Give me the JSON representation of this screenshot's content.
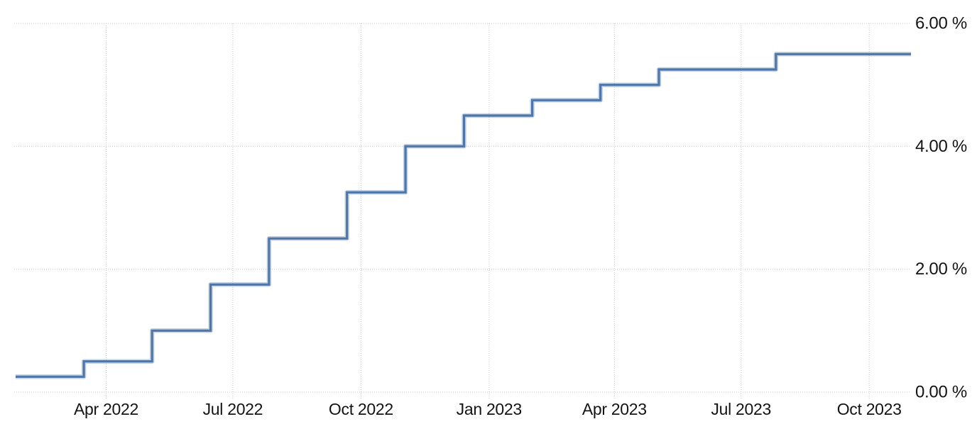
{
  "chart_data": {
    "type": "line",
    "subtype": "step-after",
    "title": "",
    "unit": "%",
    "grid": "dotted",
    "legend": "none",
    "background": "#ffffff",
    "line_color": "#4e76a8",
    "grid_color": "#c9c9c9",
    "label_color": "#141414",
    "x_range": {
      "start": "2022-01-26",
      "end": "2023-10-31"
    },
    "y_range": {
      "min": 0,
      "max": 6
    },
    "y_ticks": [
      {
        "label": "0.00 %",
        "value": 0
      },
      {
        "label": "2.00 %",
        "value": 2
      },
      {
        "label": "4.00 %",
        "value": 4
      },
      {
        "label": "6.00 %",
        "value": 6
      }
    ],
    "x_ticks": [
      {
        "label": "Apr 2022",
        "date": "2022-04-01"
      },
      {
        "label": "Jul 2022",
        "date": "2022-07-01"
      },
      {
        "label": "Oct 2022",
        "date": "2022-10-01"
      },
      {
        "label": "Jan 2023",
        "date": "2023-01-01"
      },
      {
        "label": "Apr 2023",
        "date": "2023-04-01"
      },
      {
        "label": "Jul 2023",
        "date": "2023-07-01"
      },
      {
        "label": "Oct 2023",
        "date": "2023-10-01"
      }
    ],
    "series": [
      {
        "points": [
          {
            "date": "2022-01-26",
            "value": 0.25
          },
          {
            "date": "2022-03-16",
            "value": 0.5
          },
          {
            "date": "2022-05-04",
            "value": 1.0
          },
          {
            "date": "2022-06-15",
            "value": 1.75
          },
          {
            "date": "2022-07-27",
            "value": 2.5
          },
          {
            "date": "2022-09-21",
            "value": 3.25
          },
          {
            "date": "2022-11-02",
            "value": 4.0
          },
          {
            "date": "2022-12-14",
            "value": 4.5
          },
          {
            "date": "2023-02-01",
            "value": 4.75
          },
          {
            "date": "2023-03-22",
            "value": 5.0
          },
          {
            "date": "2023-05-03",
            "value": 5.25
          },
          {
            "date": "2023-07-26",
            "value": 5.5
          },
          {
            "date": "2023-10-31",
            "value": 5.5
          }
        ]
      }
    ]
  }
}
